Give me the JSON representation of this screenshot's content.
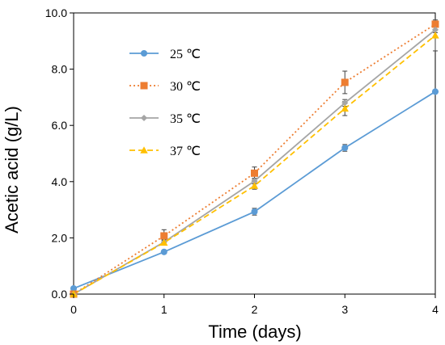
{
  "chart_data": {
    "type": "line",
    "xlabel": "Time (days)",
    "ylabel": "Acetic acid (g/L)",
    "xlim": [
      0,
      4
    ],
    "ylim": [
      0,
      10
    ],
    "x_ticks": [
      "0",
      "1",
      "2",
      "3",
      "4"
    ],
    "y_ticks": [
      "0.0",
      "2.0",
      "4.0",
      "6.0",
      "8.0",
      "10.0"
    ],
    "grid": false,
    "legend_position": "top-left",
    "x": [
      0,
      1,
      2,
      3,
      4
    ],
    "series": [
      {
        "name": "25 ℃",
        "values": [
          0.2,
          1.5,
          2.93,
          5.2,
          7.2
        ],
        "errors": [
          0,
          0.05,
          0.12,
          0.12,
          0
        ],
        "color": "#5B9BD5",
        "marker": "circle",
        "line": "solid"
      },
      {
        "name": "30 ℃",
        "values": [
          0.0,
          2.07,
          4.3,
          7.53,
          9.6
        ],
        "errors": [
          0,
          0.22,
          0.22,
          0.4,
          0.1
        ],
        "color": "#ED7D31",
        "marker": "square",
        "line": "dotted"
      },
      {
        "name": "35 ℃",
        "values": [
          0.0,
          1.85,
          4.02,
          6.8,
          9.4
        ],
        "errors": [
          0,
          0.08,
          0.1,
          0.12,
          0.1
        ],
        "color": "#A5A5A5",
        "marker": "diamond",
        "line": "solid"
      },
      {
        "name": "37 ℃",
        "values": [
          0.0,
          1.83,
          3.85,
          6.6,
          9.2
        ],
        "errors": [
          0,
          0.08,
          0.12,
          0.25,
          0.55
        ],
        "color": "#FFC000",
        "marker": "triangle",
        "line": "dashed"
      }
    ]
  }
}
